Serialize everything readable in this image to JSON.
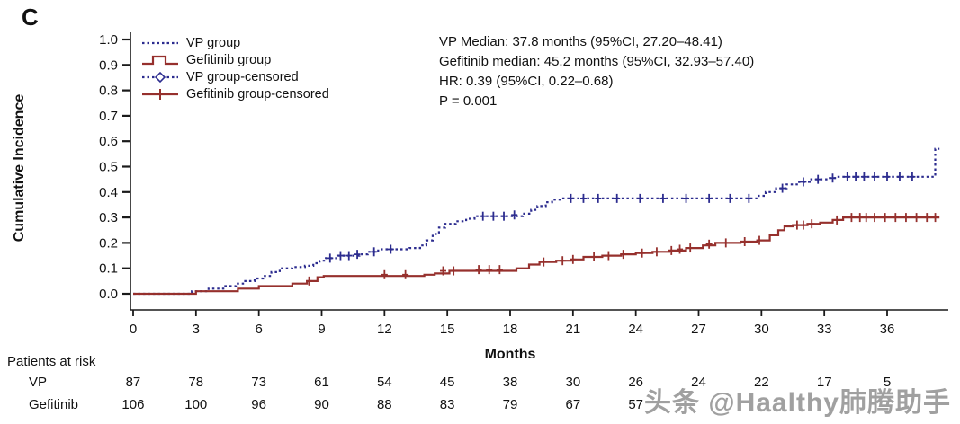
{
  "panel_label": "C",
  "watermark": "头条 @Haalthy肺腾助手",
  "chart_data": {
    "type": "line",
    "subtype": "cumulative-incidence-step",
    "title": "",
    "xlabel": "Months",
    "ylabel": "Cumulative Incidence",
    "xlim": [
      0,
      38.5
    ],
    "ylim": [
      0,
      1.0
    ],
    "x_ticks": [
      0,
      3,
      6,
      9,
      12,
      15,
      18,
      21,
      24,
      27,
      30,
      33,
      36
    ],
    "y_ticks": [
      0,
      0.1,
      0.2,
      0.3,
      0.4,
      0.5,
      0.6,
      0.7,
      0.8,
      0.9,
      1
    ],
    "grid": false,
    "legend_position": "top-left",
    "annotations": [
      "VP Median: 37.8 months (95%CI, 27.20–48.41)",
      "Gefitinib median: 45.2 months (95%CI, 32.93–57.40)",
      "HR: 0.39 (95%CI, 0.22–0.68)",
      "P = 0.001"
    ],
    "legend": [
      {
        "label": "VP group"
      },
      {
        "label": "Gefitinib group"
      },
      {
        "label": "VP group-censored"
      },
      {
        "label": "Gefitinib group-censored"
      }
    ],
    "series": [
      {
        "name": "VP group",
        "color": "#2c2c8f",
        "line": "dotted",
        "steps": [
          [
            0,
            0
          ],
          [
            2.8,
            0.01
          ],
          [
            3.6,
            0.02
          ],
          [
            4.4,
            0.03
          ],
          [
            4.9,
            0.04
          ],
          [
            5.3,
            0.05
          ],
          [
            5.8,
            0.06
          ],
          [
            6.2,
            0.07
          ],
          [
            6.6,
            0.085
          ],
          [
            7.0,
            0.1
          ],
          [
            7.6,
            0.105
          ],
          [
            8.2,
            0.11
          ],
          [
            8.6,
            0.12
          ],
          [
            8.9,
            0.13
          ],
          [
            9.2,
            0.14
          ],
          [
            9.8,
            0.15
          ],
          [
            10.8,
            0.155
          ],
          [
            11.2,
            0.165
          ],
          [
            11.7,
            0.175
          ],
          [
            13.2,
            0.18
          ],
          [
            13.7,
            0.19
          ],
          [
            14.0,
            0.21
          ],
          [
            14.3,
            0.235
          ],
          [
            14.6,
            0.26
          ],
          [
            14.9,
            0.275
          ],
          [
            15.4,
            0.285
          ],
          [
            15.9,
            0.295
          ],
          [
            16.3,
            0.305
          ],
          [
            18.6,
            0.315
          ],
          [
            19.0,
            0.33
          ],
          [
            19.3,
            0.345
          ],
          [
            19.7,
            0.36
          ],
          [
            20.0,
            0.37
          ],
          [
            20.4,
            0.375
          ],
          [
            29.8,
            0.385
          ],
          [
            30.2,
            0.4
          ],
          [
            30.7,
            0.415
          ],
          [
            31.2,
            0.43
          ],
          [
            31.8,
            0.44
          ],
          [
            32.3,
            0.45
          ],
          [
            33.2,
            0.455
          ],
          [
            33.6,
            0.46
          ],
          [
            38.3,
            0.57
          ],
          [
            38.5,
            0.57
          ]
        ],
        "censors": [
          [
            9.4,
            0.14
          ],
          [
            9.9,
            0.15
          ],
          [
            10.3,
            0.15
          ],
          [
            10.7,
            0.155
          ],
          [
            11.5,
            0.165
          ],
          [
            12.3,
            0.175
          ],
          [
            16.7,
            0.305
          ],
          [
            17.2,
            0.305
          ],
          [
            17.7,
            0.305
          ],
          [
            18.2,
            0.31
          ],
          [
            20.9,
            0.375
          ],
          [
            21.5,
            0.375
          ],
          [
            22.2,
            0.375
          ],
          [
            23.1,
            0.375
          ],
          [
            24.2,
            0.375
          ],
          [
            25.3,
            0.375
          ],
          [
            26.4,
            0.375
          ],
          [
            27.5,
            0.375
          ],
          [
            28.5,
            0.375
          ],
          [
            29.4,
            0.375
          ],
          [
            31.0,
            0.415
          ],
          [
            32.0,
            0.44
          ],
          [
            32.7,
            0.45
          ],
          [
            33.4,
            0.455
          ],
          [
            34.1,
            0.46
          ],
          [
            34.5,
            0.46
          ],
          [
            34.9,
            0.46
          ],
          [
            35.4,
            0.46
          ],
          [
            36.0,
            0.46
          ],
          [
            36.6,
            0.46
          ],
          [
            37.2,
            0.46
          ]
        ]
      },
      {
        "name": "Gefitinib group",
        "color": "#96302d",
        "line": "solid",
        "steps": [
          [
            0,
            0
          ],
          [
            3.0,
            0.01
          ],
          [
            5.0,
            0.02
          ],
          [
            6.0,
            0.03
          ],
          [
            7.6,
            0.04
          ],
          [
            8.3,
            0.05
          ],
          [
            8.8,
            0.065
          ],
          [
            9.1,
            0.07
          ],
          [
            13.9,
            0.075
          ],
          [
            14.4,
            0.08
          ],
          [
            15.1,
            0.09
          ],
          [
            18.3,
            0.1
          ],
          [
            18.9,
            0.115
          ],
          [
            19.4,
            0.125
          ],
          [
            20.2,
            0.13
          ],
          [
            20.9,
            0.135
          ],
          [
            21.5,
            0.145
          ],
          [
            22.4,
            0.15
          ],
          [
            23.3,
            0.155
          ],
          [
            24.0,
            0.16
          ],
          [
            24.8,
            0.165
          ],
          [
            25.6,
            0.17
          ],
          [
            26.4,
            0.18
          ],
          [
            27.2,
            0.19
          ],
          [
            27.8,
            0.2
          ],
          [
            29.0,
            0.205
          ],
          [
            29.8,
            0.21
          ],
          [
            30.4,
            0.23
          ],
          [
            30.8,
            0.25
          ],
          [
            31.1,
            0.265
          ],
          [
            31.5,
            0.27
          ],
          [
            32.2,
            0.275
          ],
          [
            32.8,
            0.28
          ],
          [
            33.4,
            0.29
          ],
          [
            33.9,
            0.3
          ],
          [
            38.5,
            0.3
          ]
        ],
        "censors": [
          [
            8.4,
            0.05
          ],
          [
            12.0,
            0.075
          ],
          [
            13.0,
            0.075
          ],
          [
            14.8,
            0.09
          ],
          [
            15.3,
            0.09
          ],
          [
            16.5,
            0.095
          ],
          [
            17.0,
            0.095
          ],
          [
            17.5,
            0.095
          ],
          [
            19.6,
            0.125
          ],
          [
            20.5,
            0.13
          ],
          [
            21.0,
            0.135
          ],
          [
            22.0,
            0.145
          ],
          [
            22.7,
            0.15
          ],
          [
            23.4,
            0.155
          ],
          [
            24.3,
            0.16
          ],
          [
            25.0,
            0.165
          ],
          [
            25.7,
            0.17
          ],
          [
            26.1,
            0.175
          ],
          [
            26.6,
            0.18
          ],
          [
            27.5,
            0.195
          ],
          [
            28.3,
            0.2
          ],
          [
            29.2,
            0.205
          ],
          [
            29.9,
            0.21
          ],
          [
            31.7,
            0.27
          ],
          [
            32.0,
            0.27
          ],
          [
            32.4,
            0.275
          ],
          [
            33.6,
            0.29
          ],
          [
            34.3,
            0.3
          ],
          [
            34.7,
            0.3
          ],
          [
            35.0,
            0.3
          ],
          [
            35.4,
            0.3
          ],
          [
            35.9,
            0.3
          ],
          [
            36.4,
            0.3
          ],
          [
            36.9,
            0.3
          ],
          [
            37.4,
            0.3
          ],
          [
            37.9,
            0.3
          ],
          [
            38.3,
            0.3
          ]
        ]
      }
    ]
  },
  "risk_table": {
    "title": "Patients at risk",
    "rows": [
      {
        "label": "VP",
        "values": [
          "87",
          "78",
          "73",
          "61",
          "54",
          "45",
          "38",
          "30",
          "26",
          "24",
          "22",
          "17",
          "5"
        ]
      },
      {
        "label": "Gefitinib",
        "values": [
          "106",
          "100",
          "96",
          "90",
          "88",
          "83",
          "79",
          "67",
          "57",
          "",
          "",
          "",
          ""
        ]
      }
    ]
  }
}
